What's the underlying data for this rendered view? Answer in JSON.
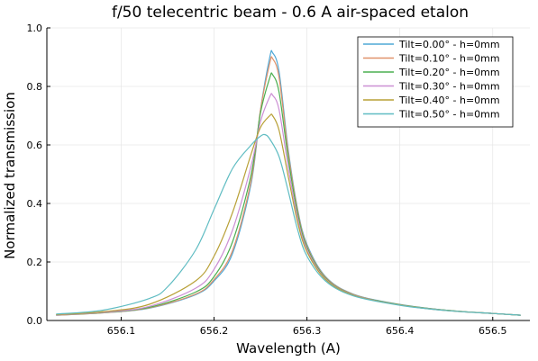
{
  "chart_data": {
    "type": "line",
    "title": "f/50 telecentric beam - 0.6 A air-spaced etalon",
    "xlabel": "Wavelength (A)",
    "ylabel": "Normalized transmission",
    "xlim": [
      656.02,
      656.54
    ],
    "ylim": [
      0,
      1
    ],
    "xticks": [
      "656.1",
      "656.2",
      "656.3",
      "656.4",
      "656.5"
    ],
    "xtick_values": [
      656.1,
      656.2,
      656.3,
      656.4,
      656.5
    ],
    "yticks": [
      "0.0",
      "0.2",
      "0.4",
      "0.6",
      "0.8",
      "1.0"
    ],
    "ytick_values": [
      0,
      0.2,
      0.4,
      0.6,
      0.8,
      1.0
    ],
    "grid": true,
    "legend_position": "top-right",
    "series": [
      {
        "name": "Tilt=0.00° - h=0mm",
        "color": "#4fa8d6",
        "x": [
          656.03,
          656.08,
          656.13,
          656.18,
          656.2,
          656.22,
          656.24,
          656.25,
          656.26,
          656.263,
          656.27,
          656.28,
          656.29,
          656.3,
          656.32,
          656.35,
          656.4,
          656.45,
          656.5,
          656.53
        ],
        "y": [
          0.018,
          0.026,
          0.042,
          0.088,
          0.135,
          0.23,
          0.47,
          0.72,
          0.9,
          0.915,
          0.85,
          0.58,
          0.38,
          0.26,
          0.15,
          0.09,
          0.055,
          0.035,
          0.024,
          0.018
        ]
      },
      {
        "name": "Tilt=0.10° - h=0mm",
        "color": "#e0926a",
        "x": [
          656.03,
          656.08,
          656.13,
          656.18,
          656.2,
          656.22,
          656.24,
          656.25,
          656.26,
          656.263,
          656.27,
          656.28,
          656.29,
          656.3,
          656.32,
          656.35,
          656.4,
          656.45,
          656.5,
          656.53
        ],
        "y": [
          0.018,
          0.026,
          0.043,
          0.09,
          0.14,
          0.24,
          0.48,
          0.72,
          0.88,
          0.895,
          0.83,
          0.57,
          0.375,
          0.255,
          0.148,
          0.089,
          0.054,
          0.035,
          0.024,
          0.018
        ]
      },
      {
        "name": "Tilt=0.20° - h=0mm",
        "color": "#4caf50",
        "x": [
          656.03,
          656.08,
          656.13,
          656.18,
          656.2,
          656.22,
          656.24,
          656.25,
          656.26,
          656.263,
          656.27,
          656.28,
          656.29,
          656.3,
          656.32,
          656.35,
          656.4,
          656.45,
          656.5,
          656.53
        ],
        "y": [
          0.019,
          0.027,
          0.045,
          0.097,
          0.15,
          0.27,
          0.5,
          0.71,
          0.83,
          0.84,
          0.78,
          0.55,
          0.365,
          0.25,
          0.145,
          0.088,
          0.054,
          0.035,
          0.024,
          0.018
        ]
      },
      {
        "name": "Tilt=0.30° - h=0mm",
        "color": "#cc8fd4",
        "x": [
          656.03,
          656.08,
          656.13,
          656.18,
          656.2,
          656.22,
          656.24,
          656.25,
          656.26,
          656.263,
          656.27,
          656.28,
          656.29,
          656.3,
          656.32,
          656.35,
          656.4,
          656.45,
          656.5,
          656.53
        ],
        "y": [
          0.019,
          0.028,
          0.048,
          0.11,
          0.175,
          0.31,
          0.53,
          0.68,
          0.765,
          0.77,
          0.72,
          0.52,
          0.35,
          0.243,
          0.142,
          0.087,
          0.053,
          0.034,
          0.024,
          0.018
        ]
      },
      {
        "name": "Tilt=0.40° - h=0mm",
        "color": "#b8a036",
        "x": [
          656.03,
          656.08,
          656.13,
          656.18,
          656.2,
          656.22,
          656.24,
          656.25,
          656.26,
          656.263,
          656.27,
          656.28,
          656.29,
          656.3,
          656.32,
          656.35,
          656.4,
          656.45,
          656.5,
          656.53
        ],
        "y": [
          0.02,
          0.03,
          0.055,
          0.135,
          0.22,
          0.37,
          0.57,
          0.66,
          0.7,
          0.7,
          0.65,
          0.49,
          0.335,
          0.235,
          0.14,
          0.086,
          0.053,
          0.034,
          0.024,
          0.018
        ]
      },
      {
        "name": "Tilt=0.50° - h=0mm",
        "color": "#5fbcc2",
        "x": [
          656.03,
          656.08,
          656.13,
          656.15,
          656.18,
          656.2,
          656.22,
          656.24,
          656.25,
          656.255,
          656.26,
          656.27,
          656.28,
          656.29,
          656.3,
          656.32,
          656.35,
          656.4,
          656.45,
          656.5,
          656.53
        ],
        "y": [
          0.022,
          0.035,
          0.075,
          0.115,
          0.24,
          0.38,
          0.52,
          0.6,
          0.63,
          0.635,
          0.62,
          0.56,
          0.44,
          0.31,
          0.22,
          0.135,
          0.084,
          0.052,
          0.034,
          0.024,
          0.018
        ]
      }
    ]
  }
}
